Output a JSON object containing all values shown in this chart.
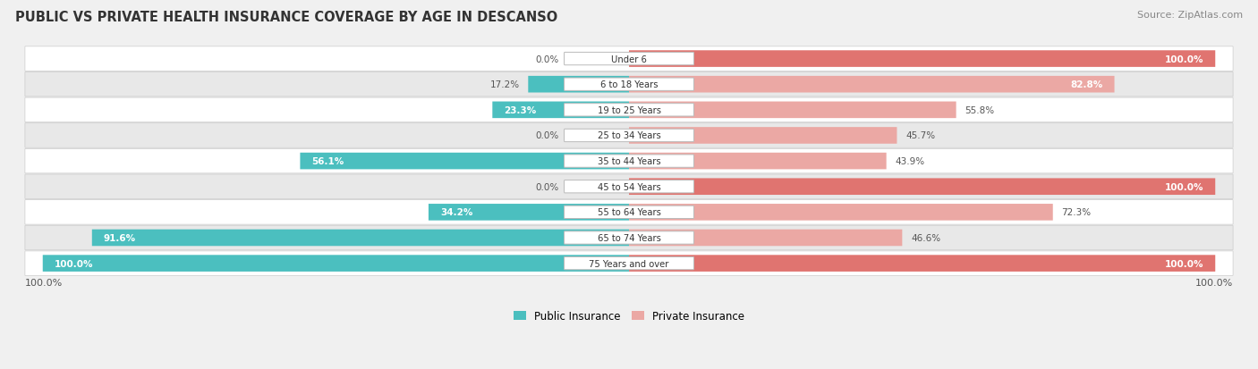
{
  "title": "PUBLIC VS PRIVATE HEALTH INSURANCE COVERAGE BY AGE IN DESCANSO",
  "source": "Source: ZipAtlas.com",
  "categories": [
    "Under 6",
    "6 to 18 Years",
    "19 to 25 Years",
    "25 to 34 Years",
    "35 to 44 Years",
    "45 to 54 Years",
    "55 to 64 Years",
    "65 to 74 Years",
    "75 Years and over"
  ],
  "public_values": [
    0.0,
    17.2,
    23.3,
    0.0,
    56.1,
    0.0,
    34.2,
    91.6,
    100.0
  ],
  "private_values": [
    100.0,
    82.8,
    55.8,
    45.7,
    43.9,
    100.0,
    72.3,
    46.6,
    100.0
  ],
  "public_color": "#4BBFBF",
  "private_color_full": "#E07470",
  "private_color_partial": "#EBA8A4",
  "public_label": "Public Insurance",
  "private_label": "Private Insurance",
  "bg_color": "#f0f0f0",
  "row_color_odd": "#ffffff",
  "row_color_even": "#e8e8e8",
  "title_color": "#333333",
  "source_color": "#888888",
  "label_color_dark": "#555555",
  "label_color_white": "#ffffff",
  "max_value": 100.0,
  "figsize": [
    14.06,
    4.14
  ],
  "dpi": 100
}
